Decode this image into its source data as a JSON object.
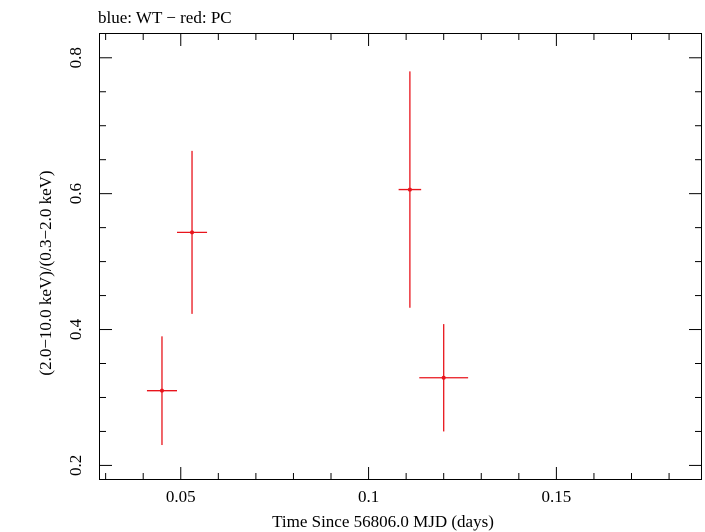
{
  "chart_data": {
    "type": "scatter",
    "title": "blue: WT − red: PC",
    "xlabel": "Time Since 56806.0 MJD (days)",
    "ylabel": "(2.0−10.0 keV)/(0.3−2.0 keV)",
    "xlim": [
      0.0285,
      0.1885
    ],
    "ylim": [
      0.18,
      0.835
    ],
    "x_ticks": [
      0.05,
      0.1,
      0.15
    ],
    "x_tick_labels": [
      "0.05",
      "0.1",
      "0.15"
    ],
    "y_ticks": [
      0.2,
      0.4,
      0.6,
      0.8
    ],
    "y_tick_labels": [
      "0.2",
      "0.4",
      "0.6",
      "0.8"
    ],
    "grid": false,
    "series": [
      {
        "name": "PC",
        "color": "#e8141c",
        "points": [
          {
            "x": 0.045,
            "y": 0.31,
            "xerr": [
              0.004,
              0.004
            ],
            "yerr": [
              0.08,
              0.08
            ]
          },
          {
            "x": 0.053,
            "y": 0.543,
            "xerr": [
              0.004,
              0.004
            ],
            "yerr": [
              0.12,
              0.12
            ]
          },
          {
            "x": 0.111,
            "y": 0.606,
            "xerr": [
              0.003,
              0.003
            ],
            "yerr": [
              0.174,
              0.174
            ]
          },
          {
            "x": 0.12,
            "y": 0.329,
            "xerr": [
              0.0065,
              0.0065
            ],
            "yerr": [
              0.079,
              0.079
            ]
          }
        ]
      }
    ]
  }
}
